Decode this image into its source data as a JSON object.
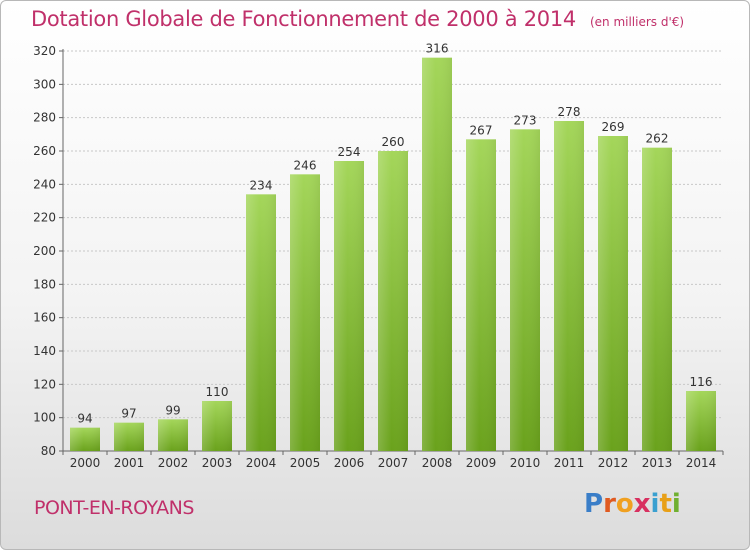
{
  "header": {
    "title": "Dotation Globale de Fonctionnement de 2000 à 2014",
    "unit_note": "(en milliers d'€)"
  },
  "footer": {
    "commune": "PONT-EN-ROYANS",
    "brand": "Proxiti"
  },
  "colors": {
    "bar_top": "#a4d65a",
    "bar_bottom": "#6aa21c",
    "title": "#c0306a",
    "grid": "#c8c8c8"
  },
  "chart_data": {
    "type": "bar",
    "title": "Dotation Globale de Fonctionnement de 2000 à 2014",
    "subtitle": "(en milliers d'€)",
    "xlabel": "",
    "ylabel": "",
    "categories": [
      "2000",
      "2001",
      "2002",
      "2003",
      "2004",
      "2005",
      "2006",
      "2007",
      "2008",
      "2009",
      "2010",
      "2011",
      "2012",
      "2013",
      "2014"
    ],
    "values": [
      94,
      97,
      99,
      110,
      234,
      246,
      254,
      260,
      316,
      267,
      273,
      278,
      269,
      262,
      116
    ],
    "ylim": [
      80,
      320
    ],
    "yticks": [
      80,
      100,
      120,
      140,
      160,
      180,
      200,
      220,
      240,
      260,
      280,
      300,
      320
    ],
    "grid": true,
    "data_labels": true,
    "legend": "none"
  }
}
